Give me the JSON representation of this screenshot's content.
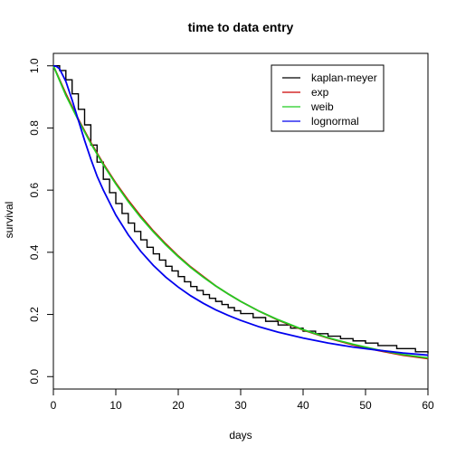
{
  "chart_data": {
    "type": "line",
    "title": "time to data entry",
    "xlabel": "days",
    "ylabel": "survival",
    "xlim": [
      0,
      60
    ],
    "ylim": [
      -0.04,
      1.04
    ],
    "x_ticks": [
      "0",
      "10",
      "20",
      "30",
      "40",
      "50",
      "60"
    ],
    "y_ticks": [
      "0.0",
      "0.2",
      "0.4",
      "0.6",
      "0.8",
      "1.0"
    ],
    "grid": false,
    "legend_position": "top-right",
    "series": [
      {
        "name": "kaplan-meyer",
        "color": "#000000",
        "style": "step",
        "x": [
          0,
          1,
          2,
          3,
          4,
          5,
          6,
          7,
          8,
          9,
          10,
          11,
          12,
          13,
          14,
          15,
          16,
          17,
          18,
          19,
          20,
          21,
          22,
          23,
          24,
          25,
          26,
          27,
          28,
          29,
          30,
          32,
          34,
          36,
          38,
          40,
          42,
          44,
          46,
          48,
          50,
          52,
          55,
          58,
          60
        ],
        "y": [
          1.0,
          0.985,
          0.955,
          0.91,
          0.86,
          0.81,
          0.745,
          0.69,
          0.635,
          0.592,
          0.557,
          0.525,
          0.494,
          0.467,
          0.44,
          0.416,
          0.395,
          0.375,
          0.355,
          0.34,
          0.322,
          0.305,
          0.29,
          0.277,
          0.264,
          0.252,
          0.242,
          0.232,
          0.222,
          0.212,
          0.203,
          0.19,
          0.178,
          0.166,
          0.156,
          0.146,
          0.138,
          0.13,
          0.122,
          0.115,
          0.108,
          0.1,
          0.09,
          0.08,
          0.075
        ]
      },
      {
        "name": "exp",
        "color": "#cc0000",
        "style": "line",
        "x": [
          0,
          2,
          4,
          6,
          8,
          10,
          12,
          14,
          16,
          18,
          20,
          22,
          24,
          26,
          28,
          30,
          33,
          36,
          40,
          44,
          48,
          52,
          56,
          60
        ],
        "y": [
          1.0,
          0.91,
          0.828,
          0.753,
          0.685,
          0.623,
          0.567,
          0.516,
          0.469,
          0.427,
          0.388,
          0.353,
          0.322,
          0.292,
          0.266,
          0.242,
          0.21,
          0.182,
          0.15,
          0.124,
          0.102,
          0.084,
          0.069,
          0.058
        ]
      },
      {
        "name": "weib",
        "color": "#22cc22",
        "style": "line",
        "x": [
          0,
          2,
          4,
          6,
          8,
          10,
          12,
          14,
          16,
          18,
          20,
          22,
          24,
          26,
          28,
          30,
          33,
          36,
          40,
          44,
          48,
          52,
          56,
          60
        ],
        "y": [
          1.0,
          0.905,
          0.825,
          0.75,
          0.682,
          0.62,
          0.563,
          0.512,
          0.466,
          0.424,
          0.386,
          0.351,
          0.32,
          0.292,
          0.266,
          0.242,
          0.21,
          0.183,
          0.151,
          0.125,
          0.104,
          0.086,
          0.071,
          0.06
        ]
      },
      {
        "name": "lognormal",
        "color": "#0000ee",
        "style": "line",
        "x": [
          0,
          0.5,
          1,
          2,
          3,
          4,
          5,
          6,
          7,
          8,
          10,
          12,
          14,
          16,
          18,
          20,
          22,
          24,
          26,
          28,
          30,
          33,
          36,
          40,
          44,
          48,
          52,
          56,
          60
        ],
        "y": [
          1.0,
          0.998,
          0.99,
          0.95,
          0.89,
          0.825,
          0.76,
          0.7,
          0.645,
          0.6,
          0.52,
          0.456,
          0.403,
          0.358,
          0.32,
          0.288,
          0.26,
          0.236,
          0.215,
          0.197,
          0.181,
          0.16,
          0.143,
          0.124,
          0.108,
          0.095,
          0.085,
          0.076,
          0.069
        ]
      }
    ]
  }
}
